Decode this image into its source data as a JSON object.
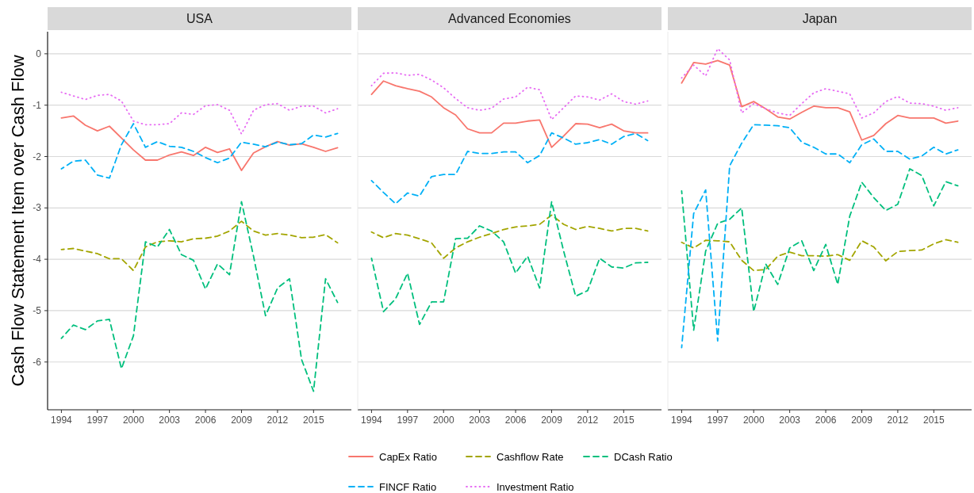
{
  "chart_data": [
    {
      "type": "line",
      "title": "USA",
      "ylabel": "Cash Flow Statement Item over Cash Flow",
      "legend": "bottom",
      "grid": "y",
      "x": [
        1994,
        1995,
        1996,
        1997,
        1998,
        1999,
        2000,
        2001,
        2002,
        2003,
        2004,
        2005,
        2006,
        2007,
        2008,
        2009,
        2010,
        2011,
        2012,
        2013,
        2014,
        2015,
        2016,
        2017
      ],
      "xlim": [
        1992.85,
        2018.15
      ],
      "xticks": [
        1994,
        1997,
        2000,
        2003,
        2006,
        2009,
        2012,
        2015
      ],
      "ylim": [
        -6.93,
        0.43
      ],
      "yticks": [
        -6,
        -5,
        -4,
        -3,
        -2,
        -1,
        0
      ],
      "series": [
        {
          "name": "CapEx Ratio",
          "color": "#f8766d",
          "line_style": "solid",
          "values": [
            -1.25,
            -1.21,
            -1.39,
            -1.5,
            -1.41,
            -1.64,
            -1.87,
            -2.07,
            -2.07,
            -1.97,
            -1.91,
            -1.98,
            -1.82,
            -1.92,
            -1.85,
            -2.27,
            -1.93,
            -1.81,
            -1.71,
            -1.78,
            -1.75,
            -1.82,
            -1.9,
            -1.83
          ]
        },
        {
          "name": "Cashflow Rate",
          "color": "#a3a500",
          "line_style": "dashed",
          "values": [
            -3.81,
            -3.79,
            -3.84,
            -3.89,
            -3.99,
            -3.99,
            -4.22,
            -3.76,
            -3.66,
            -3.64,
            -3.66,
            -3.6,
            -3.59,
            -3.55,
            -3.45,
            -3.26,
            -3.45,
            -3.53,
            -3.5,
            -3.53,
            -3.58,
            -3.57,
            -3.52,
            -3.68
          ]
        },
        {
          "name": "DCash Ratio",
          "color": "#00bf7d",
          "line_style": "dashed",
          "values": [
            -5.54,
            -5.28,
            -5.37,
            -5.2,
            -5.17,
            -6.13,
            -5.49,
            -3.66,
            -3.76,
            -3.42,
            -3.91,
            -4.02,
            -4.58,
            -4.09,
            -4.3,
            -2.88,
            -3.94,
            -5.1,
            -4.56,
            -4.38,
            -5.95,
            -6.57,
            -4.38,
            -4.84
          ]
        },
        {
          "name": "FINCF Ratio",
          "color": "#00b0f6",
          "line_style": "dashed",
          "values": [
            -2.24,
            -2.09,
            -2.07,
            -2.36,
            -2.42,
            -1.77,
            -1.36,
            -1.82,
            -1.71,
            -1.8,
            -1.82,
            -1.9,
            -2.02,
            -2.12,
            -2.03,
            -1.72,
            -1.76,
            -1.81,
            -1.72,
            -1.77,
            -1.75,
            -1.58,
            -1.62,
            -1.55
          ]
        },
        {
          "name": "Investment Ratio",
          "color": "#e76bf3",
          "line_style": "dotted",
          "values": [
            -0.75,
            -0.82,
            -0.89,
            -0.81,
            -0.79,
            -0.92,
            -1.31,
            -1.38,
            -1.38,
            -1.36,
            -1.15,
            -1.18,
            -1.01,
            -0.99,
            -1.1,
            -1.56,
            -1.1,
            -0.99,
            -0.97,
            -1.1,
            -1.02,
            -1.02,
            -1.15,
            -1.07
          ]
        }
      ]
    },
    {
      "type": "line",
      "title": "Advanced Economies",
      "grid": "y",
      "tick_labels": "x",
      "x": [
        1994,
        1995,
        1996,
        1997,
        1998,
        1999,
        2000,
        2001,
        2002,
        2003,
        2004,
        2005,
        2006,
        2007,
        2008,
        2009,
        2010,
        2011,
        2012,
        2013,
        2014,
        2015,
        2016,
        2017
      ],
      "xlim": [
        1992.85,
        2018.15
      ],
      "xticks": [
        1994,
        1997,
        2000,
        2003,
        2006,
        2009,
        2012,
        2015
      ],
      "ylim": [
        -6.93,
        0.43
      ],
      "yticks": [
        -6,
        -5,
        -4,
        -3,
        -2,
        -1,
        0
      ],
      "series": [
        {
          "name": "CapEx Ratio",
          "color": "#f8766d",
          "line_style": "solid",
          "values": [
            -0.79,
            -0.53,
            -0.62,
            -0.68,
            -0.73,
            -0.84,
            -1.05,
            -1.19,
            -1.46,
            -1.54,
            -1.54,
            -1.35,
            -1.35,
            -1.31,
            -1.29,
            -1.82,
            -1.6,
            -1.36,
            -1.37,
            -1.44,
            -1.37,
            -1.5,
            -1.54,
            -1.54
          ]
        },
        {
          "name": "Cashflow Rate",
          "color": "#a3a500",
          "line_style": "dashed",
          "values": [
            -3.47,
            -3.58,
            -3.5,
            -3.53,
            -3.6,
            -3.68,
            -3.98,
            -3.78,
            -3.66,
            -3.57,
            -3.5,
            -3.42,
            -3.37,
            -3.35,
            -3.32,
            -3.14,
            -3.32,
            -3.42,
            -3.36,
            -3.4,
            -3.45,
            -3.4,
            -3.4,
            -3.45
          ]
        },
        {
          "name": "DCash Ratio",
          "color": "#00bf7d",
          "line_style": "dashed",
          "values": [
            -3.98,
            -5.02,
            -4.77,
            -4.27,
            -5.27,
            -4.83,
            -4.83,
            -3.6,
            -3.59,
            -3.35,
            -3.45,
            -3.66,
            -4.27,
            -3.94,
            -4.56,
            -2.88,
            -3.84,
            -4.72,
            -4.61,
            -3.98,
            -4.15,
            -4.17,
            -4.07,
            -4.06
          ]
        },
        {
          "name": "FINCF Ratio",
          "color": "#00b0f6",
          "line_style": "dashed",
          "values": [
            -2.47,
            -2.7,
            -2.92,
            -2.71,
            -2.77,
            -2.39,
            -2.35,
            -2.35,
            -1.9,
            -1.94,
            -1.94,
            -1.91,
            -1.91,
            -2.12,
            -1.98,
            -1.54,
            -1.64,
            -1.76,
            -1.73,
            -1.67,
            -1.76,
            -1.61,
            -1.55,
            -1.69
          ]
        },
        {
          "name": "Investment Ratio",
          "color": "#e76bf3",
          "line_style": "dotted",
          "values": [
            -0.62,
            -0.38,
            -0.37,
            -0.42,
            -0.4,
            -0.51,
            -0.66,
            -0.87,
            -1.05,
            -1.1,
            -1.06,
            -0.88,
            -0.84,
            -0.65,
            -0.7,
            -1.28,
            -1.05,
            -0.82,
            -0.84,
            -0.9,
            -0.78,
            -0.93,
            -0.98,
            -0.92
          ]
        }
      ]
    },
    {
      "type": "line",
      "title": "Japan",
      "grid": "y",
      "tick_labels": "x",
      "x": [
        1994,
        1995,
        1996,
        1997,
        1998,
        1999,
        2000,
        2001,
        2002,
        2003,
        2004,
        2005,
        2006,
        2007,
        2008,
        2009,
        2010,
        2011,
        2012,
        2013,
        2014,
        2015,
        2016,
        2017
      ],
      "xlim": [
        1992.85,
        2018.15
      ],
      "xticks": [
        1994,
        1997,
        2000,
        2003,
        2006,
        2009,
        2012,
        2015
      ],
      "ylim": [
        -6.93,
        0.43
      ],
      "yticks": [
        -6,
        -5,
        -4,
        -3,
        -2,
        -1,
        0
      ],
      "series": [
        {
          "name": "CapEx Ratio",
          "color": "#f8766d",
          "line_style": "solid",
          "values": [
            -0.57,
            -0.17,
            -0.2,
            -0.13,
            -0.22,
            -1.03,
            -0.93,
            -1.07,
            -1.23,
            -1.27,
            -1.14,
            -1.02,
            -1.05,
            -1.05,
            -1.13,
            -1.68,
            -1.59,
            -1.36,
            -1.2,
            -1.25,
            -1.25,
            -1.25,
            -1.35,
            -1.31
          ]
        },
        {
          "name": "Cashflow Rate",
          "color": "#a3a500",
          "line_style": "dashed",
          "values": [
            -3.67,
            -3.78,
            -3.63,
            -3.64,
            -3.66,
            -4.02,
            -4.22,
            -4.2,
            -3.94,
            -3.86,
            -3.93,
            -3.93,
            -3.94,
            -3.91,
            -4.02,
            -3.64,
            -3.76,
            -4.03,
            -3.85,
            -3.83,
            -3.82,
            -3.7,
            -3.62,
            -3.67
          ]
        },
        {
          "name": "DCash Ratio",
          "color": "#00bf7d",
          "line_style": "dashed",
          "values": [
            -2.67,
            -5.38,
            -3.84,
            -3.3,
            -3.22,
            -3.0,
            -5.02,
            -4.09,
            -4.49,
            -3.78,
            -3.64,
            -4.22,
            -3.71,
            -4.49,
            -3.16,
            -2.5,
            -2.8,
            -3.05,
            -2.93,
            -2.24,
            -2.37,
            -2.96,
            -2.49,
            -2.57
          ]
        },
        {
          "name": "FINCF Ratio",
          "color": "#00b0f6",
          "line_style": "dashed",
          "values": [
            -5.72,
            -3.11,
            -2.65,
            -5.59,
            -2.18,
            -1.74,
            -1.38,
            -1.39,
            -1.4,
            -1.44,
            -1.72,
            -1.82,
            -1.95,
            -1.95,
            -2.12,
            -1.77,
            -1.66,
            -1.9,
            -1.9,
            -2.05,
            -1.99,
            -1.82,
            -1.95,
            -1.87
          ]
        },
        {
          "name": "Investment Ratio",
          "color": "#e76bf3",
          "line_style": "dotted",
          "values": [
            -0.47,
            -0.22,
            -0.43,
            0.1,
            -0.12,
            -1.15,
            -0.97,
            -1.07,
            -1.15,
            -1.2,
            -0.97,
            -0.76,
            -0.68,
            -0.73,
            -0.78,
            -1.25,
            -1.15,
            -0.93,
            -0.83,
            -0.96,
            -0.97,
            -1.02,
            -1.1,
            -1.05
          ]
        }
      ]
    }
  ]
}
